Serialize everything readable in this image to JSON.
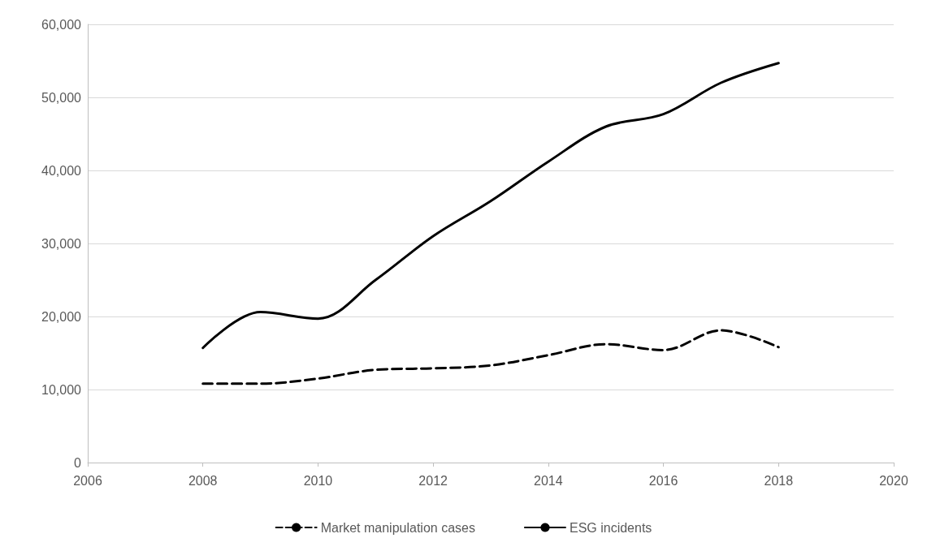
{
  "chart_data": {
    "type": "line",
    "x": [
      2008,
      2009,
      2010,
      2011,
      2012,
      2013,
      2014,
      2015,
      2016,
      2017,
      2018
    ],
    "series": [
      {
        "name": "Market manipulation cases",
        "color": "#000000",
        "line_style": "dashed",
        "values": [
          10800,
          10800,
          11500,
          12700,
          12900,
          13300,
          14700,
          16200,
          15400,
          18100,
          15800
        ]
      },
      {
        "name": "ESG incidents",
        "color": "#000000",
        "line_style": "solid",
        "values": [
          15700,
          20600,
          19700,
          25000,
          31000,
          35800,
          41200,
          46000,
          47700,
          52000,
          54700
        ]
      }
    ],
    "xlim": [
      2006,
      2020
    ],
    "xticks": [
      2006,
      2008,
      2010,
      2012,
      2014,
      2016,
      2018,
      2020
    ],
    "ylim": [
      0,
      60000
    ],
    "yticks": [
      {
        "value": 0,
        "label": "0"
      },
      {
        "value": 10000,
        "label": "10,000"
      },
      {
        "value": 20000,
        "label": "20,000"
      },
      {
        "value": 30000,
        "label": "30,000"
      },
      {
        "value": 40000,
        "label": "40,000"
      },
      {
        "value": 50000,
        "label": "50,000"
      },
      {
        "value": 60000,
        "label": "60,000"
      }
    ],
    "grid": "y",
    "legend": "bottom",
    "marker": "none"
  }
}
